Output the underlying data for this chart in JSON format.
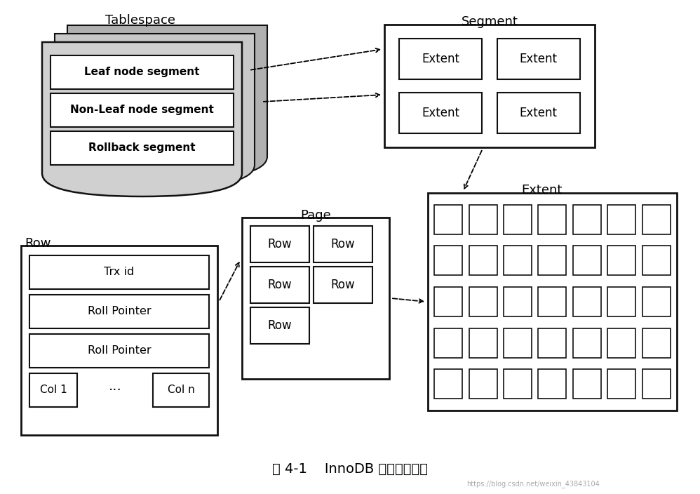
{
  "bg_color": "#ffffff",
  "title": "图 4-1    InnoDB 逻辑存储结构",
  "title_fontsize": 13,
  "watermark": "https://blog.csdn.net/weixin_43843104",
  "tablespace_label": "Tablespace",
  "segment_label": "Segment",
  "extent_label": "Extent",
  "page_label": "Page",
  "row_label": "Row",
  "segments": [
    "Leaf node segment",
    "Non-Leaf node segment",
    "Rollback segment"
  ],
  "box_edge_color": "#111111",
  "white_fill": "#ffffff",
  "gray_fill": "#c8c8c8",
  "dark_gray_fill": "#aaaaaa"
}
